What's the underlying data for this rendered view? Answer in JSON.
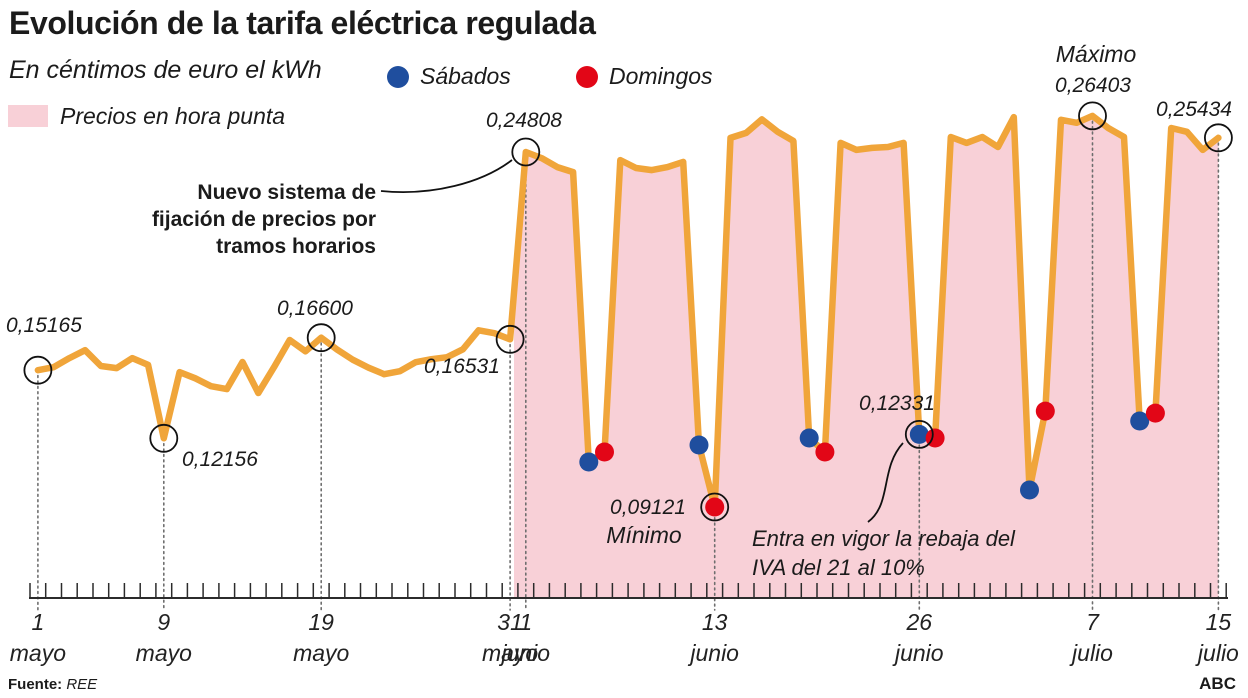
{
  "header": {
    "title": "Evolución de la tarifa eléctrica regulada",
    "subtitle": "En céntimos de euro el kWh"
  },
  "legend": {
    "saturday_label": "Sábados",
    "sunday_label": "Domingos",
    "peak_label": "Precios en hora punta"
  },
  "colors": {
    "line": "#F0A53A",
    "area": "#F8D0D7",
    "saturday": "#1F4E9E",
    "sunday": "#E20617",
    "text": "#1b1b1b",
    "guide": "#6E6E6E",
    "axis": "#2b2b2b",
    "ring": "#111111"
  },
  "annotations": {
    "start_value": "0,15165",
    "may9_value": "0,12156",
    "may19_value": "0,16600",
    "may31_value": "0,16531",
    "jun1_value": "0,24808",
    "new_system": {
      "lines": [
        "Nuevo sistema de",
        "fijación de precios por",
        "tramos horarios"
      ]
    },
    "min_value": "0,09121",
    "min_label": "Mínimo",
    "jun26_value": "0,12331",
    "iva_note": {
      "lines": [
        "Entra en vigor la rebaja del",
        "IVA del 21 al 10%"
      ]
    },
    "max_label": "Máximo",
    "max_value": "0,26403",
    "jul15_value": "0,25434"
  },
  "footer": {
    "source_label": "Fuente:",
    "source": "REE",
    "credit": "ABC"
  },
  "chart_data": {
    "type": "line",
    "title": "Evolución de la tarifa eléctrica regulada",
    "unit": "céntimos de euro el kWh",
    "x_start": "1 mayo",
    "x_end": "15 julio",
    "n_days": 76,
    "values": [
      0.15165,
      0.153,
      0.157,
      0.1605,
      0.1535,
      0.1526,
      0.157,
      0.154,
      0.12156,
      0.1508,
      0.1481,
      0.1446,
      0.1433,
      0.1553,
      0.1416,
      0.153,
      0.165,
      0.16,
      0.166,
      0.1608,
      0.1563,
      0.1528,
      0.1499,
      0.1512,
      0.1552,
      0.1565,
      0.1574,
      0.1609,
      0.1693,
      0.168,
      0.16531,
      0.24808,
      0.2454,
      0.2414,
      0.2392,
      0.1111,
      0.1155,
      0.2445,
      0.241,
      0.2401,
      0.2414,
      0.2437,
      0.1186,
      0.09121,
      0.2543,
      0.2565,
      0.2625,
      0.257,
      0.253,
      0.1217,
      0.1155,
      0.2521,
      0.249,
      0.2499,
      0.2503,
      0.2521,
      0.12331,
      0.1217,
      0.2547,
      0.2521,
      0.2547,
      0.2503,
      0.2635,
      0.0987,
      0.1336,
      0.2623,
      0.261,
      0.26403,
      0.2587,
      0.2547,
      0.1292,
      0.1327,
      0.2587,
      0.257,
      0.249,
      0.25434
    ],
    "saturday_days": [
      36,
      43,
      50,
      57,
      64,
      71
    ],
    "sunday_days": [
      37,
      44,
      51,
      58,
      65,
      72
    ],
    "circled_days": [
      1,
      9,
      19,
      31,
      32,
      44,
      57,
      68,
      76
    ],
    "highlight_area": {
      "label": "Precios en hora punta",
      "from_day": 32,
      "to_day": 76
    },
    "annotated_values": {
      "1 mayo": 0.15165,
      "9 mayo": 0.12156,
      "19 mayo": 0.166,
      "31 mayo": 0.16531,
      "1 junio": 0.24808,
      "13 junio (Mínimo)": 0.09121,
      "26 junio": 0.12331,
      "7 julio (Máximo)": 0.26403,
      "15 julio": 0.25434
    },
    "axis_labels": [
      {
        "day": 1,
        "num": "1",
        "month": "mayo"
      },
      {
        "day": 9,
        "num": "9",
        "month": "mayo"
      },
      {
        "day": 19,
        "num": "19",
        "month": "mayo"
      },
      {
        "day": 31,
        "num": "31",
        "month": "mayo"
      },
      {
        "day": 32,
        "num": "1",
        "month": "junio"
      },
      {
        "day": 44,
        "num": "13",
        "month": "junio"
      },
      {
        "day": 57,
        "num": "26",
        "month": "junio"
      },
      {
        "day": 68,
        "num": "7",
        "month": "julio"
      },
      {
        "day": 76,
        "num": "15",
        "month": "julio"
      }
    ]
  }
}
